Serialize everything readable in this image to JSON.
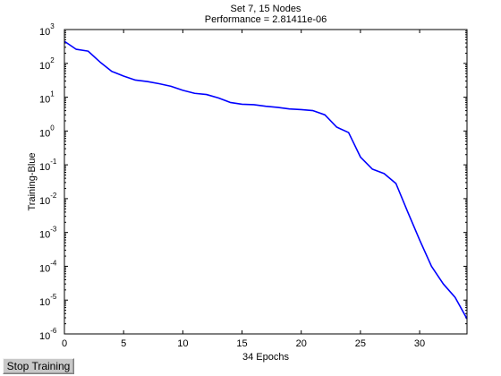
{
  "chart_data": {
    "type": "line",
    "title": "Set 7, 15 Nodes",
    "subtitle": "Performance = 2.81411e-06",
    "xlabel": "34 Epochs",
    "ylabel": "Training-Blue",
    "xlim": [
      0,
      34
    ],
    "ylim": [
      1e-06,
      1000
    ],
    "yscale": "log",
    "grid": false,
    "x_ticks": [
      0,
      5,
      10,
      15,
      20,
      25,
      30
    ],
    "y_tick_exponents": [
      3,
      2,
      1,
      0,
      -1,
      -2,
      -3,
      -4,
      -5,
      -6
    ],
    "y_tick_base": "10",
    "line_color": "#0000ff",
    "series": [
      {
        "x": [
          0,
          1,
          2,
          3,
          4,
          5,
          6,
          7,
          8,
          9,
          10,
          11,
          12,
          13,
          14,
          15,
          16,
          17,
          18,
          19,
          20,
          21,
          22,
          23,
          24,
          25,
          26,
          27,
          28,
          29,
          30,
          31,
          32,
          33,
          34
        ],
        "y": [
          450,
          260,
          230,
          110,
          58,
          42,
          32,
          29,
          25,
          21,
          16,
          13,
          12,
          9.5,
          7,
          6.2,
          6,
          5.4,
          5,
          4.5,
          4.3,
          4,
          3,
          1.3,
          0.9,
          0.17,
          0.075,
          0.055,
          0.028,
          0.004,
          0.0006,
          0.0001,
          3e-05,
          1.2e-05,
          2.8e-06
        ]
      }
    ]
  },
  "controls": {
    "stop_label": "Stop Training"
  }
}
